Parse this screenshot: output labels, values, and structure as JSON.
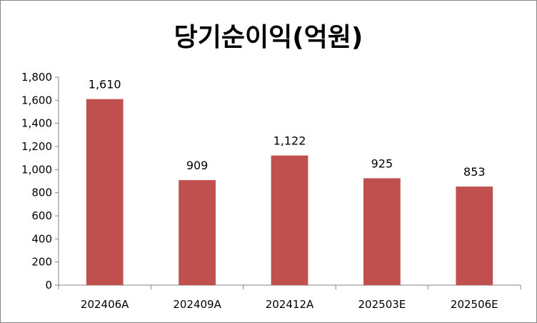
{
  "chart_data": {
    "type": "bar",
    "title": "당기순이익(억원)",
    "categories": [
      "202406A",
      "202409A",
      "202412A",
      "202503E",
      "202506E"
    ],
    "values": [
      1610,
      909,
      1122,
      925,
      853
    ],
    "data_labels": [
      "1,610",
      "909",
      "1,122",
      "925",
      "853"
    ],
    "ylim": [
      0,
      1800
    ],
    "yticks": [
      0,
      200,
      400,
      600,
      800,
      1000,
      1200,
      1400,
      1600,
      1800
    ],
    "ytick_labels": [
      "0",
      "200",
      "400",
      "600",
      "800",
      "1,000",
      "1,200",
      "1,400",
      "1,600",
      "1,800"
    ],
    "xlabel": "",
    "ylabel": "",
    "grid": false,
    "legend": false,
    "bar_color": "#C0504D"
  }
}
